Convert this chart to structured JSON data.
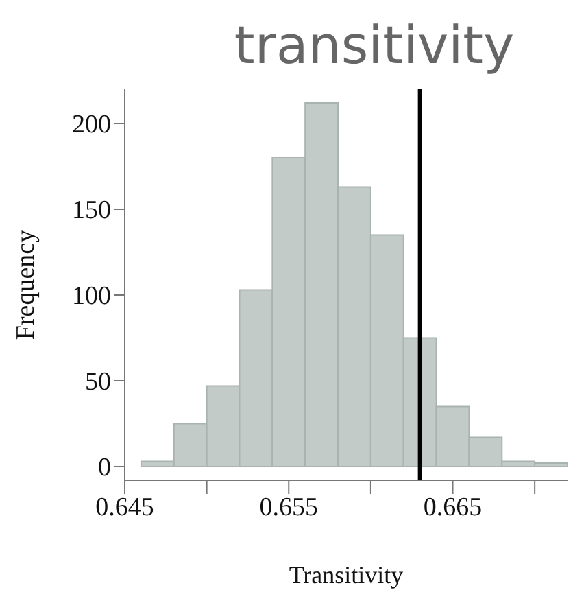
{
  "chart_data": {
    "type": "histogram",
    "title": "transitivity",
    "xlabel": "Transitivity",
    "ylabel": "Frequency",
    "bins": [
      0.646,
      0.648,
      0.65,
      0.652,
      0.654,
      0.656,
      0.658,
      0.66,
      0.662,
      0.664,
      0.666,
      0.668,
      0.67,
      0.672
    ],
    "values": [
      3,
      25,
      47,
      103,
      180,
      212,
      163,
      135,
      75,
      35,
      17,
      3,
      2
    ],
    "color": "#c2cbc8",
    "xlim": [
      0.645,
      0.672
    ],
    "xticks": [
      0.645,
      {
        "value": 0.65,
        "label": null
      },
      0.655,
      {
        "value": 0.66,
        "label": null
      },
      0.665,
      {
        "value": 0.67,
        "label": null
      }
    ],
    "ylim": [
      -8,
      220
    ],
    "yticks": [
      0,
      50,
      100,
      150,
      200
    ],
    "ref_lines": [
      {
        "axis": "x",
        "value": 0.663,
        "color": "#000000"
      }
    ],
    "grid": false
  }
}
